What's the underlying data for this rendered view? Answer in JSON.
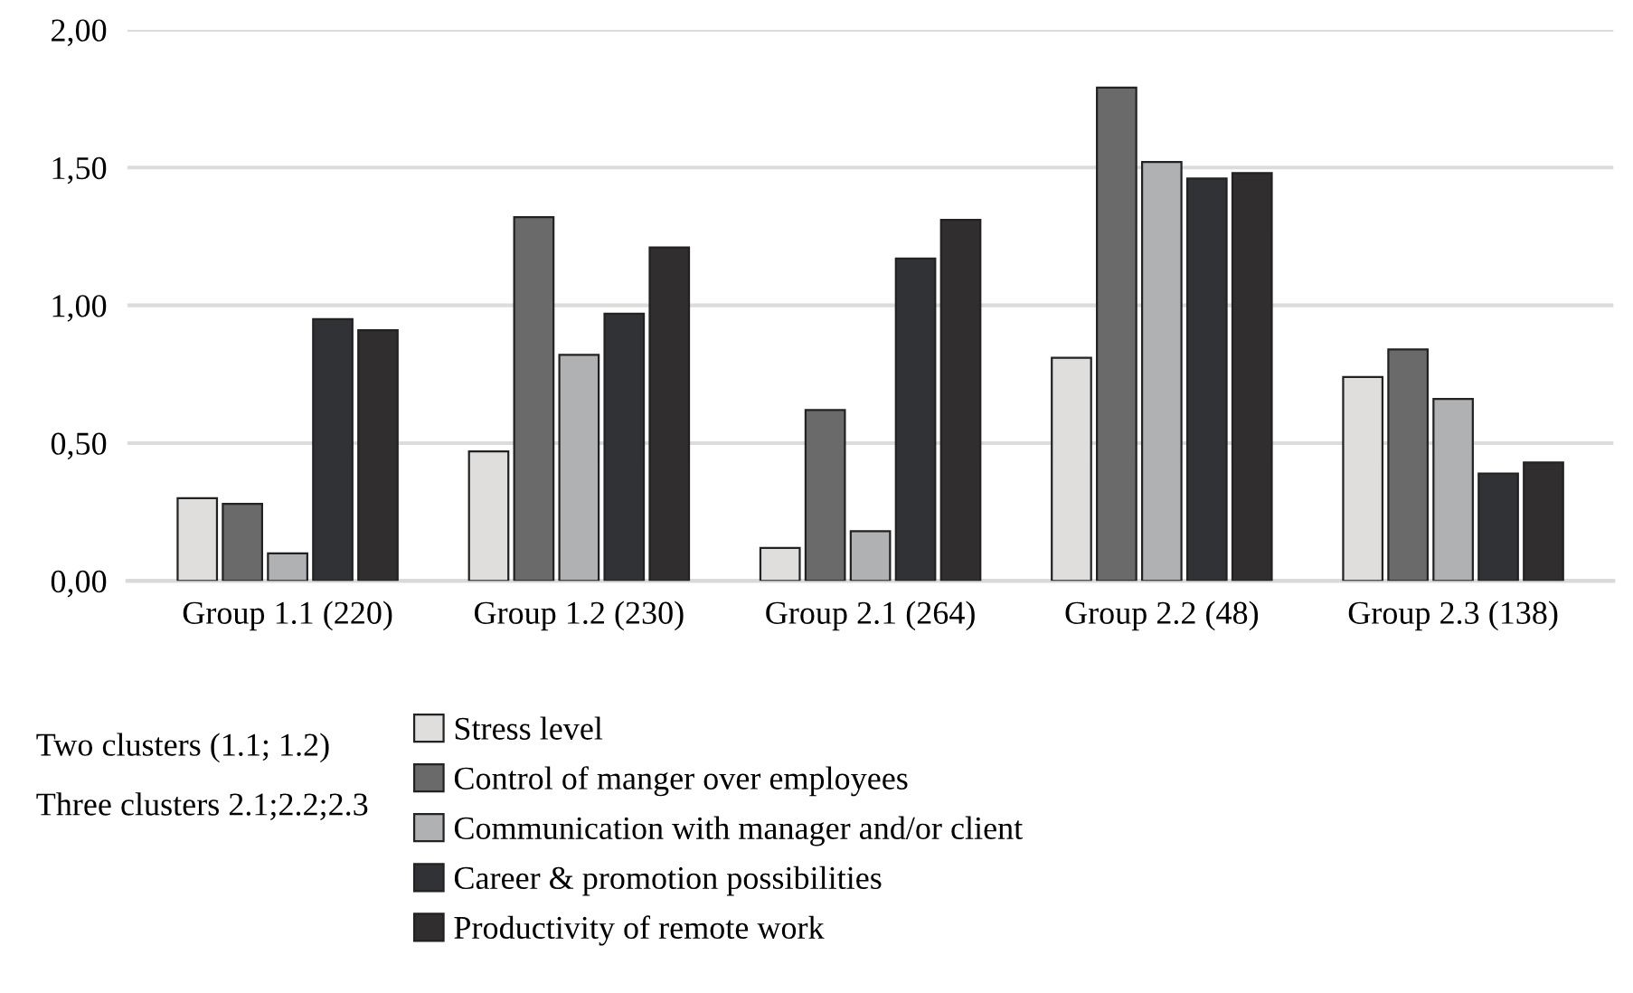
{
  "chart_data": {
    "type": "bar",
    "categories": [
      "Group 1.1 (220)",
      "Group 1.2 (230)",
      "Group 2.1 (264)",
      "Group 2.2 (48)",
      "Group 2.3 (138)"
    ],
    "series": [
      {
        "name": "Stress level",
        "color": "#dfdedc",
        "values": [
          0.3,
          0.47,
          0.12,
          0.81,
          0.74
        ]
      },
      {
        "name": "Control of manger over employees",
        "color": "#6a6a6a",
        "values": [
          0.28,
          1.32,
          0.62,
          1.79,
          0.84
        ]
      },
      {
        "name": "Communication with manager and/or client",
        "color": "#b0b1b3",
        "values": [
          0.1,
          0.82,
          0.18,
          1.52,
          0.66
        ]
      },
      {
        "name": "Career & promotion possibilities",
        "color": "#303236",
        "values": [
          0.95,
          0.97,
          1.17,
          1.46,
          0.39
        ]
      },
      {
        "name": "Productivity of remote work",
        "color": "#302e2f",
        "values": [
          0.91,
          1.21,
          1.31,
          1.48,
          0.43
        ]
      }
    ],
    "ylim": [
      0,
      2
    ],
    "yticks": [
      {
        "value": 0,
        "label": "0,00"
      },
      {
        "value": 0.5,
        "label": "0,50"
      },
      {
        "value": 1,
        "label": "1,00"
      },
      {
        "value": 1.5,
        "label": "1,50"
      },
      {
        "value": 2,
        "label": "2,00"
      }
    ],
    "grid": "y",
    "legend": "bottom",
    "annotations": [
      "Two clusters (1.1; 1.2)",
      "Three clusters 2.1;2.2;2.3"
    ]
  }
}
